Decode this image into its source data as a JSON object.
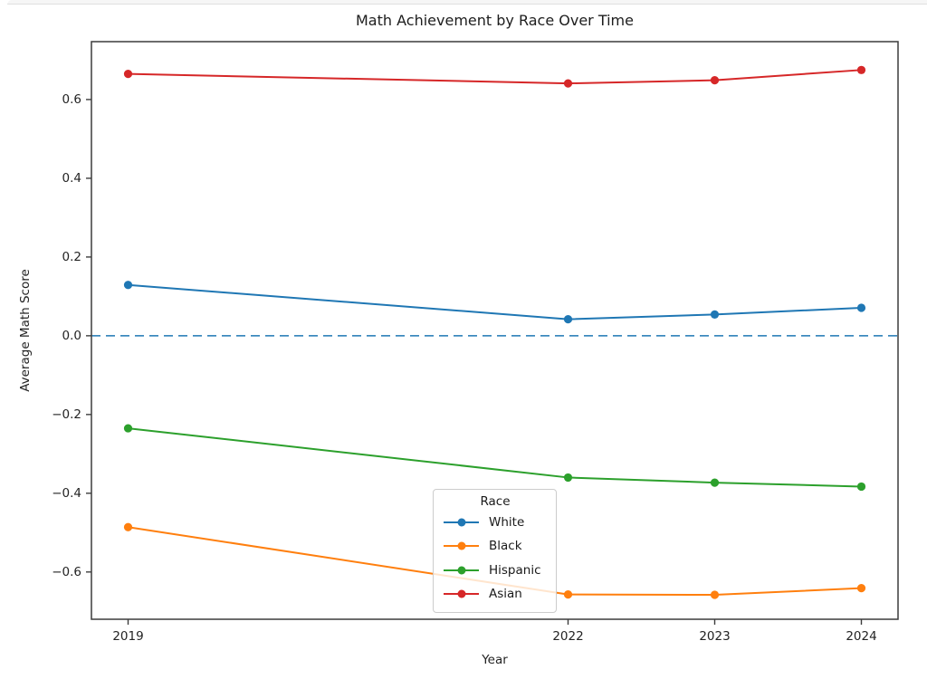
{
  "chart_data": {
    "type": "line",
    "title": "Math Achievement by Race Over Time",
    "xlabel": "Year",
    "ylabel": "Average Math Score",
    "x": [
      2019,
      2022,
      2023,
      2024
    ],
    "xtick_labels": [
      "2019",
      "2022",
      "2023",
      "2024"
    ],
    "yticks": [
      -0.6,
      -0.4,
      -0.2,
      0.0,
      0.2,
      0.4,
      0.6
    ],
    "ytick_labels": [
      "−0.6",
      "−0.4",
      "−0.2",
      "0.0",
      "0.2",
      "0.4",
      "0.6"
    ],
    "xlim": [
      2018.75,
      2024.25
    ],
    "ylim": [
      -0.72,
      0.747
    ],
    "grid": false,
    "zero_line": {
      "y": 0.0,
      "style": "dashed",
      "color": "#1f77b4"
    },
    "series": [
      {
        "name": "White",
        "color": "#1f77b4",
        "values": [
          0.129,
          0.042,
          0.054,
          0.071
        ]
      },
      {
        "name": "Black",
        "color": "#ff7f0e",
        "values": [
          -0.486,
          -0.657,
          -0.658,
          -0.641
        ]
      },
      {
        "name": "Hispanic",
        "color": "#2ca02c",
        "values": [
          -0.235,
          -0.36,
          -0.373,
          -0.383
        ]
      },
      {
        "name": "Asian",
        "color": "#d62728",
        "values": [
          0.665,
          0.641,
          0.649,
          0.675
        ]
      }
    ],
    "legend": {
      "title": "Race",
      "position": "lower-center"
    }
  }
}
